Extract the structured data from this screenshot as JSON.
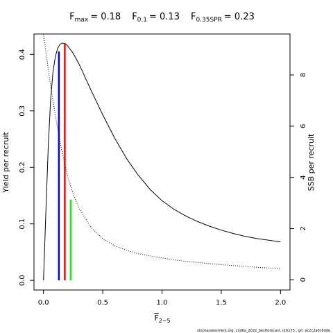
{
  "chart_data": {
    "type": "line",
    "title_parts": [
      {
        "main": "F",
        "sub": "max",
        "value": "= 0.18"
      },
      {
        "main": "F",
        "sub": "0.1",
        "value": "= 0.13"
      },
      {
        "main": "F",
        "sub": "0.35SPR",
        "value": "= 0.23"
      }
    ],
    "xlabel_main": "F",
    "xlabel_sub": "2−5",
    "ylabel_left": "Yield per recruit",
    "ylabel_right": "SSB per recruit",
    "xlim": [
      -0.08,
      2.08
    ],
    "ylim_left": [
      -0.017,
      0.436
    ],
    "ylim_right": [
      -0.4,
      9.6
    ],
    "x_ticks": [
      0,
      0.5,
      1,
      1.5,
      2
    ],
    "x_tick_labels": [
      "0.0",
      "0.5",
      "1.0",
      "1.5",
      "2.0"
    ],
    "y_left_ticks": [
      0,
      0.1,
      0.2,
      0.3,
      0.4
    ],
    "y_left_tick_labels": [
      "0.0",
      "0.1",
      "0.2",
      "0.3",
      "0.4"
    ],
    "y_right_ticks": [
      0,
      2,
      4,
      6,
      8
    ],
    "y_right_tick_labels": [
      "0",
      "2",
      "4",
      "6",
      "8"
    ],
    "series": [
      {
        "axis": "left",
        "style": "solid",
        "color": "#000000",
        "x": [
          0,
          0.02,
          0.04,
          0.06,
          0.08,
          0.1,
          0.12,
          0.14,
          0.16,
          0.18,
          0.2,
          0.25,
          0.3,
          0.4,
          0.5,
          0.6,
          0.7,
          0.8,
          0.9,
          1.0,
          1.1,
          1.2,
          1.3,
          1.4,
          1.5,
          1.6,
          1.7,
          1.8,
          1.9,
          2.0
        ],
        "y": [
          0,
          0.12,
          0.235,
          0.318,
          0.368,
          0.396,
          0.411,
          0.418,
          0.42,
          0.419,
          0.416,
          0.402,
          0.383,
          0.337,
          0.293,
          0.252,
          0.216,
          0.186,
          0.161,
          0.141,
          0.126,
          0.114,
          0.104,
          0.096,
          0.089,
          0.083,
          0.078,
          0.074,
          0.071,
          0.068
        ]
      },
      {
        "axis": "right",
        "style": "dotted",
        "color": "#000000",
        "x": [
          0,
          0.05,
          0.1,
          0.15,
          0.2,
          0.25,
          0.3,
          0.4,
          0.5,
          0.6,
          0.7,
          0.8,
          1.0,
          1.2,
          1.4,
          1.6,
          1.8,
          2.0
        ],
        "y": [
          9.6,
          7.9,
          6.4,
          5.15,
          4.1,
          3.35,
          2.8,
          2.05,
          1.6,
          1.33,
          1.15,
          1.02,
          0.85,
          0.72,
          0.63,
          0.55,
          0.49,
          0.43
        ]
      }
    ],
    "reference_lines": [
      {
        "label": "F0.1",
        "x": 0.13,
        "y": 0.405,
        "color": "#0000ff"
      },
      {
        "label": "Fmax",
        "x": 0.18,
        "y": 0.42,
        "color": "#ff0000"
      },
      {
        "label": "F0.35SPR",
        "x": 0.23,
        "y": 0.143,
        "color": "#00ff00"
      }
    ],
    "grid": false
  },
  "footer": "stockassessment.org, cod6a_2022_bestforecast, r16175 , git: ec2c2a0c6dde"
}
